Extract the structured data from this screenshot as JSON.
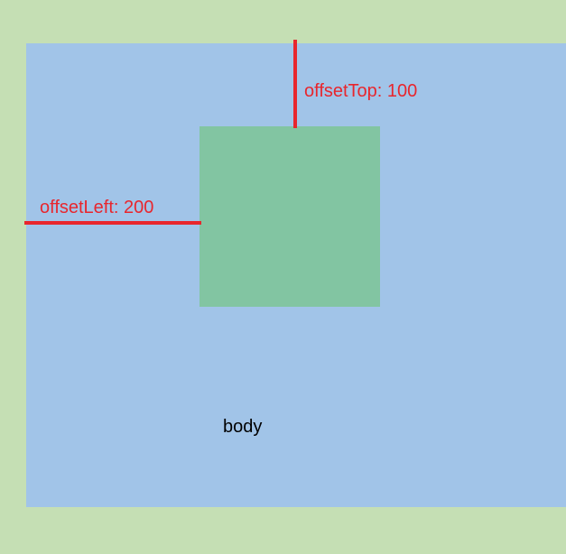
{
  "diagram": {
    "offset_top_label": "offsetTop: 100",
    "offset_left_label": "offsetLeft: 200",
    "body_label": "body"
  },
  "colors": {
    "outer_background": "#c5dfb4",
    "body_background": "#a1c4e8",
    "child_background": "#82c5a2",
    "annotation": "#e8262d"
  }
}
